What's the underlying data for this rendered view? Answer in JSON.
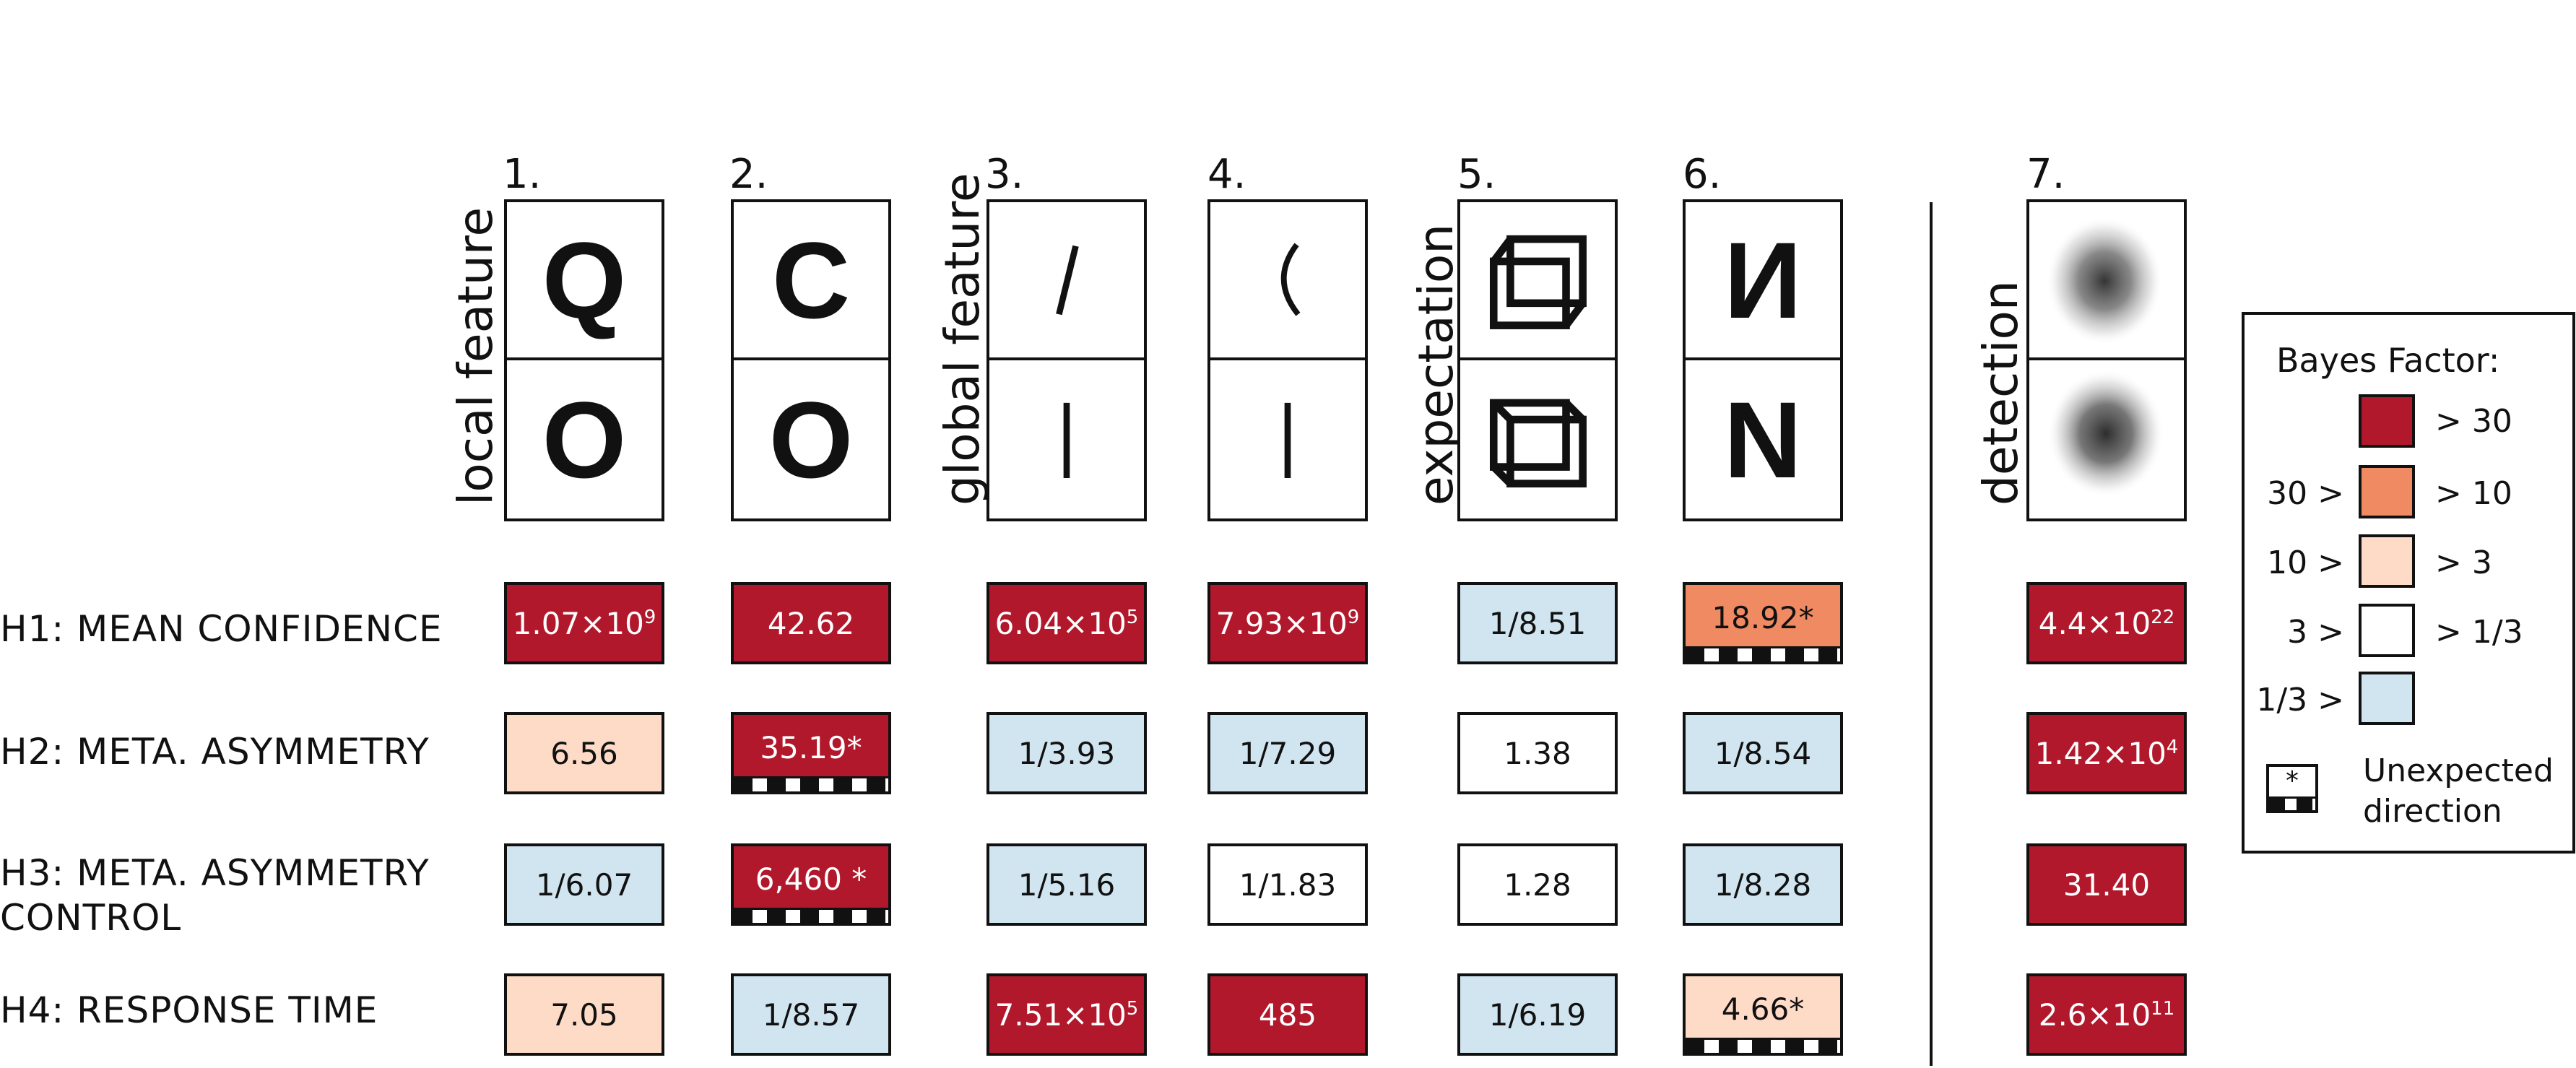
{
  "columns": [
    {
      "number": "1.",
      "top": "Q",
      "bottom": "O"
    },
    {
      "number": "2.",
      "top": "C",
      "bottom": "O"
    },
    {
      "number": "3.",
      "top": "/",
      "bottom": "|"
    },
    {
      "number": "4.",
      "top": "(",
      "bottom": "|"
    },
    {
      "number": "5.",
      "top": "cube-icon",
      "bottom": "cube-icon"
    },
    {
      "number": "6.",
      "top": "И",
      "bottom": "N"
    },
    {
      "number": "7.",
      "top": "noise-blob",
      "bottom": "noise-blob"
    }
  ],
  "group_labels": {
    "local": "local feature",
    "global": "global feature",
    "expectation": "expectation",
    "detection": "detection"
  },
  "rows": [
    {
      "label_lines": [
        "H1: MEAN CONFIDENCE"
      ],
      "cells": [
        {
          "base": "1.07×10",
          "exp": "9",
          "color": "red",
          "hatch": false
        },
        {
          "base": "42.62",
          "exp": "",
          "color": "red",
          "hatch": false
        },
        {
          "base": "6.04×10",
          "exp": "5",
          "color": "red",
          "hatch": false
        },
        {
          "base": "7.93×10",
          "exp": "9",
          "color": "red",
          "hatch": false
        },
        {
          "base": "1/8.51",
          "exp": "",
          "color": "blue",
          "hatch": false
        },
        {
          "base": "18.92*",
          "exp": "",
          "color": "orange",
          "hatch": true
        },
        {
          "base": "4.4×10",
          "exp": "22",
          "color": "red",
          "hatch": false
        }
      ]
    },
    {
      "label_lines": [
        "H2: META. ASYMMETRY"
      ],
      "cells": [
        {
          "base": "6.56",
          "exp": "",
          "color": "peach",
          "hatch": false
        },
        {
          "base": "35.19*",
          "exp": "",
          "color": "red",
          "hatch": true
        },
        {
          "base": "1/3.93",
          "exp": "",
          "color": "blue",
          "hatch": false
        },
        {
          "base": "1/7.29",
          "exp": "",
          "color": "blue",
          "hatch": false
        },
        {
          "base": "1.38",
          "exp": "",
          "color": "white",
          "hatch": false
        },
        {
          "base": "1/8.54",
          "exp": "",
          "color": "blue",
          "hatch": false
        },
        {
          "base": "1.42×10",
          "exp": "4",
          "color": "red",
          "hatch": false
        }
      ]
    },
    {
      "label_lines": [
        "H3: META. ASYMMETRY",
        "CONTROL"
      ],
      "cells": [
        {
          "base": "1/6.07",
          "exp": "",
          "color": "blue",
          "hatch": false
        },
        {
          "base": "6,460 *",
          "exp": "",
          "color": "red",
          "hatch": true
        },
        {
          "base": "1/5.16",
          "exp": "",
          "color": "blue",
          "hatch": false
        },
        {
          "base": "1/1.83",
          "exp": "",
          "color": "white",
          "hatch": false
        },
        {
          "base": "1.28",
          "exp": "",
          "color": "white",
          "hatch": false
        },
        {
          "base": "1/8.28",
          "exp": "",
          "color": "blue",
          "hatch": false
        },
        {
          "base": "31.40",
          "exp": "",
          "color": "red",
          "hatch": false
        }
      ]
    },
    {
      "label_lines": [
        "H4: RESPONSE TIME"
      ],
      "cells": [
        {
          "base": "7.05",
          "exp": "",
          "color": "peach",
          "hatch": false
        },
        {
          "base": "1/8.57",
          "exp": "",
          "color": "blue",
          "hatch": false
        },
        {
          "base": "7.51×10",
          "exp": "5",
          "color": "red",
          "hatch": false
        },
        {
          "base": "485",
          "exp": "",
          "color": "red",
          "hatch": false
        },
        {
          "base": "1/6.19",
          "exp": "",
          "color": "blue",
          "hatch": false
        },
        {
          "base": "4.66*",
          "exp": "",
          "color": "peach",
          "hatch": true
        },
        {
          "base": "2.6×10",
          "exp": "11",
          "color": "red",
          "hatch": false
        }
      ]
    }
  ],
  "legend": {
    "title": "Bayes Factor:",
    "items": [
      {
        "left": "",
        "right": "> 30",
        "color": "red"
      },
      {
        "left": "30 >",
        "right": "> 10",
        "color": "orange"
      },
      {
        "left": "10 >",
        "right": "> 3",
        "color": "peach"
      },
      {
        "left": "3 >",
        "right": "> 1/3",
        "color": "white"
      },
      {
        "left": "1/3 >",
        "right": "",
        "color": "blue"
      }
    ],
    "unexpected_symbol": "*",
    "unexpected_lines": [
      "Unexpected",
      "direction"
    ]
  },
  "colors": {
    "red": "#b2182b",
    "orange": "#ef8a62",
    "peach": "#fddbc7",
    "white": "#ffffff",
    "blue": "#d1e5f0"
  }
}
